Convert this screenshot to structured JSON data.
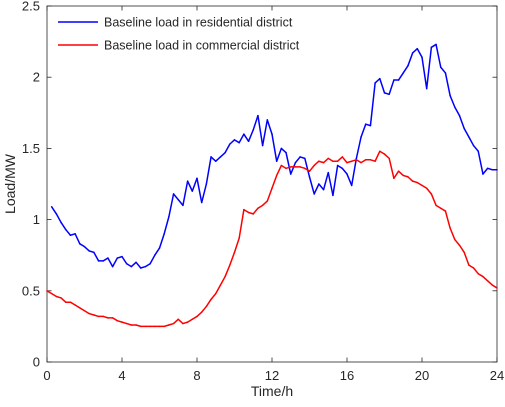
{
  "chart_data": {
    "type": "line",
    "title": "",
    "xlabel": "Time/h",
    "ylabel": "Load/MW",
    "xlim": [
      0,
      24
    ],
    "ylim": [
      0,
      2.5
    ],
    "xticks": [
      "0",
      "4",
      "8",
      "12",
      "16",
      "20",
      "24"
    ],
    "yticks": [
      "0",
      "0.5",
      "1",
      "1.5",
      "2",
      "2.5"
    ],
    "grid": false,
    "legend_position": "top-left",
    "series": [
      {
        "name": "Baseline load in residential district",
        "color": "#0000ff",
        "points": [
          [
            0.25,
            1.09
          ],
          [
            0.5,
            1.04
          ],
          [
            0.75,
            0.98
          ],
          [
            1.0,
            0.93
          ],
          [
            1.25,
            0.89
          ],
          [
            1.5,
            0.9
          ],
          [
            1.75,
            0.83
          ],
          [
            2.0,
            0.81
          ],
          [
            2.25,
            0.78
          ],
          [
            2.5,
            0.77
          ],
          [
            2.75,
            0.71
          ],
          [
            3.0,
            0.71
          ],
          [
            3.25,
            0.73
          ],
          [
            3.5,
            0.67
          ],
          [
            3.75,
            0.73
          ],
          [
            4.0,
            0.74
          ],
          [
            4.25,
            0.69
          ],
          [
            4.5,
            0.67
          ],
          [
            4.75,
            0.7
          ],
          [
            5.0,
            0.66
          ],
          [
            5.25,
            0.67
          ],
          [
            5.5,
            0.69
          ],
          [
            5.75,
            0.75
          ],
          [
            6.0,
            0.8
          ],
          [
            6.25,
            0.9
          ],
          [
            6.5,
            1.02
          ],
          [
            6.75,
            1.18
          ],
          [
            7.0,
            1.14
          ],
          [
            7.25,
            1.1
          ],
          [
            7.5,
            1.27
          ],
          [
            7.75,
            1.2
          ],
          [
            8.0,
            1.29
          ],
          [
            8.25,
            1.12
          ],
          [
            8.5,
            1.25
          ],
          [
            8.75,
            1.44
          ],
          [
            9.0,
            1.41
          ],
          [
            9.25,
            1.44
          ],
          [
            9.5,
            1.47
          ],
          [
            9.75,
            1.53
          ],
          [
            10.0,
            1.56
          ],
          [
            10.25,
            1.54
          ],
          [
            10.5,
            1.6
          ],
          [
            10.75,
            1.55
          ],
          [
            11.0,
            1.63
          ],
          [
            11.25,
            1.73
          ],
          [
            11.5,
            1.52
          ],
          [
            11.75,
            1.7
          ],
          [
            12.0,
            1.6
          ],
          [
            12.25,
            1.41
          ],
          [
            12.5,
            1.5
          ],
          [
            12.75,
            1.47
          ],
          [
            13.0,
            1.32
          ],
          [
            13.25,
            1.4
          ],
          [
            13.5,
            1.44
          ],
          [
            13.75,
            1.43
          ],
          [
            14.0,
            1.3
          ],
          [
            14.25,
            1.18
          ],
          [
            14.5,
            1.25
          ],
          [
            14.75,
            1.21
          ],
          [
            15.0,
            1.33
          ],
          [
            15.25,
            1.17
          ],
          [
            15.5,
            1.38
          ],
          [
            15.75,
            1.36
          ],
          [
            16.0,
            1.32
          ],
          [
            16.25,
            1.24
          ],
          [
            16.5,
            1.43
          ],
          [
            16.75,
            1.58
          ],
          [
            17.0,
            1.67
          ],
          [
            17.25,
            1.66
          ],
          [
            17.5,
            1.96
          ],
          [
            17.75,
            1.99
          ],
          [
            18.0,
            1.89
          ],
          [
            18.25,
            1.88
          ],
          [
            18.5,
            1.98
          ],
          [
            18.75,
            1.98
          ],
          [
            19.0,
            2.03
          ],
          [
            19.25,
            2.08
          ],
          [
            19.5,
            2.17
          ],
          [
            19.75,
            2.2
          ],
          [
            20.0,
            2.14
          ],
          [
            20.25,
            1.92
          ],
          [
            20.5,
            2.21
          ],
          [
            20.75,
            2.23
          ],
          [
            21.0,
            2.07
          ],
          [
            21.25,
            2.03
          ],
          [
            21.5,
            1.87
          ],
          [
            21.75,
            1.79
          ],
          [
            22.0,
            1.73
          ],
          [
            22.25,
            1.64
          ],
          [
            22.5,
            1.58
          ],
          [
            22.75,
            1.52
          ],
          [
            23.0,
            1.48
          ],
          [
            23.25,
            1.32
          ],
          [
            23.5,
            1.36
          ],
          [
            23.75,
            1.35
          ],
          [
            24.0,
            1.35
          ]
        ]
      },
      {
        "name": "Baseline load in commercial district",
        "color": "#ff0000",
        "points": [
          [
            0.0,
            0.5
          ],
          [
            0.25,
            0.48
          ],
          [
            0.5,
            0.46
          ],
          [
            0.75,
            0.45
          ],
          [
            1.0,
            0.42
          ],
          [
            1.25,
            0.42
          ],
          [
            1.5,
            0.4
          ],
          [
            1.75,
            0.38
          ],
          [
            2.0,
            0.36
          ],
          [
            2.25,
            0.34
          ],
          [
            2.5,
            0.33
          ],
          [
            2.75,
            0.32
          ],
          [
            3.0,
            0.32
          ],
          [
            3.25,
            0.31
          ],
          [
            3.5,
            0.31
          ],
          [
            3.75,
            0.29
          ],
          [
            4.0,
            0.28
          ],
          [
            4.25,
            0.27
          ],
          [
            4.5,
            0.26
          ],
          [
            4.75,
            0.26
          ],
          [
            5.0,
            0.25
          ],
          [
            5.25,
            0.25
          ],
          [
            5.5,
            0.25
          ],
          [
            5.75,
            0.25
          ],
          [
            6.0,
            0.25
          ],
          [
            6.25,
            0.25
          ],
          [
            6.5,
            0.26
          ],
          [
            6.75,
            0.27
          ],
          [
            7.0,
            0.3
          ],
          [
            7.25,
            0.27
          ],
          [
            7.5,
            0.28
          ],
          [
            7.75,
            0.3
          ],
          [
            8.0,
            0.32
          ],
          [
            8.25,
            0.35
          ],
          [
            8.5,
            0.39
          ],
          [
            8.75,
            0.44
          ],
          [
            9.0,
            0.48
          ],
          [
            9.25,
            0.54
          ],
          [
            9.5,
            0.6
          ],
          [
            9.75,
            0.68
          ],
          [
            10.0,
            0.77
          ],
          [
            10.25,
            0.87
          ],
          [
            10.5,
            1.07
          ],
          [
            10.75,
            1.05
          ],
          [
            11.0,
            1.04
          ],
          [
            11.25,
            1.08
          ],
          [
            11.5,
            1.1
          ],
          [
            11.75,
            1.13
          ],
          [
            12.0,
            1.22
          ],
          [
            12.25,
            1.31
          ],
          [
            12.5,
            1.38
          ],
          [
            12.75,
            1.36
          ],
          [
            13.0,
            1.37
          ],
          [
            13.25,
            1.37
          ],
          [
            13.5,
            1.37
          ],
          [
            13.75,
            1.36
          ],
          [
            14.0,
            1.34
          ],
          [
            14.25,
            1.38
          ],
          [
            14.5,
            1.41
          ],
          [
            14.75,
            1.4
          ],
          [
            15.0,
            1.43
          ],
          [
            15.25,
            1.41
          ],
          [
            15.5,
            1.41
          ],
          [
            15.75,
            1.44
          ],
          [
            16.0,
            1.4
          ],
          [
            16.25,
            1.41
          ],
          [
            16.5,
            1.42
          ],
          [
            16.75,
            1.4
          ],
          [
            17.0,
            1.42
          ],
          [
            17.25,
            1.42
          ],
          [
            17.5,
            1.41
          ],
          [
            17.75,
            1.48
          ],
          [
            18.0,
            1.46
          ],
          [
            18.25,
            1.43
          ],
          [
            18.5,
            1.29
          ],
          [
            18.75,
            1.34
          ],
          [
            19.0,
            1.31
          ],
          [
            19.25,
            1.3
          ],
          [
            19.5,
            1.27
          ],
          [
            19.75,
            1.26
          ],
          [
            20.0,
            1.24
          ],
          [
            20.25,
            1.22
          ],
          [
            20.5,
            1.18
          ],
          [
            20.75,
            1.1
          ],
          [
            21.0,
            1.08
          ],
          [
            21.25,
            1.06
          ],
          [
            21.5,
            0.94
          ],
          [
            21.75,
            0.86
          ],
          [
            22.0,
            0.82
          ],
          [
            22.25,
            0.77
          ],
          [
            22.5,
            0.68
          ],
          [
            22.75,
            0.66
          ],
          [
            23.0,
            0.62
          ],
          [
            23.25,
            0.6
          ],
          [
            23.5,
            0.57
          ],
          [
            23.75,
            0.54
          ],
          [
            24.0,
            0.52
          ]
        ]
      }
    ]
  }
}
